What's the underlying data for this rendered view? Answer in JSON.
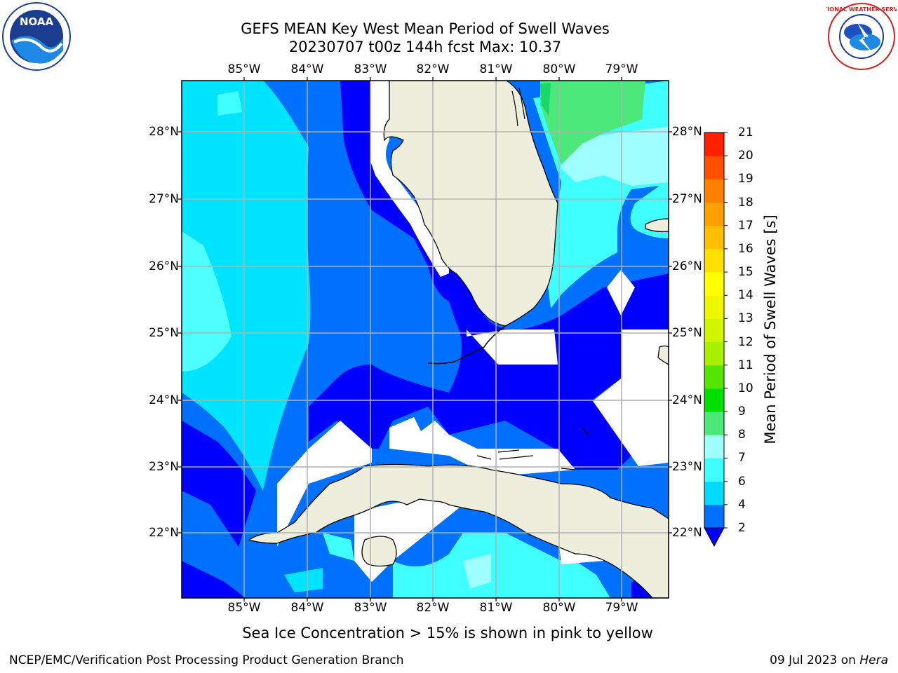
{
  "title": {
    "line1": "GEFS MEAN Key West Mean Period of Swell Waves",
    "line2": "20230707 t00z 144h fcst   Max: 10.37"
  },
  "map": {
    "lon_labels": [
      "85°W",
      "84°W",
      "83°W",
      "82°W",
      "81°W",
      "80°W",
      "79°W"
    ],
    "lat_labels": [
      "28°N",
      "27°N",
      "26°N",
      "25°N",
      "24°N",
      "23°N",
      "22°N"
    ],
    "lon_range": [
      -86.0,
      -78.25
    ],
    "lat_range": [
      21.0,
      28.75
    ],
    "grid": true,
    "colors": {
      "land": "#eeeedd",
      "missing": "#ffffff",
      "coast": "#000000"
    }
  },
  "colorbar": {
    "label": "Mean Period of Swell Waves [s]",
    "ticks": [
      "2",
      "4",
      "6",
      "7",
      "8",
      "9",
      "10",
      "11",
      "12",
      "13",
      "14",
      "15",
      "16",
      "17",
      "18",
      "19",
      "20",
      "21"
    ],
    "colors": [
      "#0070ff",
      "#00dcff",
      "#40ffff",
      "#9fffff",
      "#4de87a",
      "#00e000",
      "#55e600",
      "#a6f000",
      "#d2f500",
      "#ecf700",
      "#ffff00",
      "#ffe000",
      "#ffbf00",
      "#ffa000",
      "#ff8000",
      "#ff5000",
      "#ff2000"
    ],
    "extend_below_color": "#0000ff"
  },
  "note": "Sea Ice Concentration > 15% is shown in pink to yellow",
  "footer": {
    "left": "NCEP/EMC/Verification Post Processing Product Generation Branch",
    "right_prefix": "09 Jul 2023 on ",
    "right_host": "Hera"
  },
  "logos": {
    "left": "NOAA",
    "right_text": "NATIONAL WEATHER SERVICE"
  }
}
